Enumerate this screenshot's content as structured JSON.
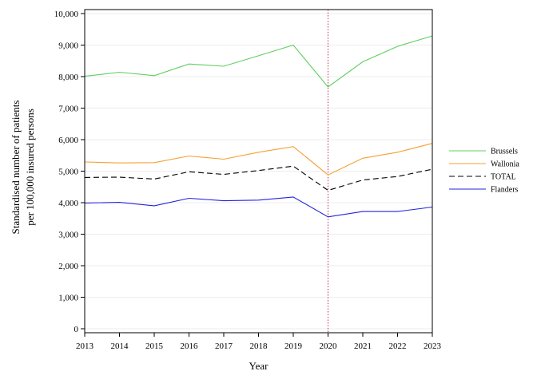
{
  "chart_data": {
    "type": "line",
    "xlabel": "Year",
    "ylabel_lines": [
      "Standardised number of patients",
      "per 100,000 insured persons"
    ],
    "x": [
      2013,
      2014,
      2015,
      2016,
      2017,
      2018,
      2019,
      2020,
      2021,
      2022,
      2023
    ],
    "x_tick_labels": [
      "2013",
      "2014",
      "2015",
      "2016",
      "2017",
      "2018",
      "2019",
      "2020",
      "2021",
      "2022",
      "2023"
    ],
    "xlim": [
      2013,
      2023
    ],
    "ylim": [
      0,
      10000
    ],
    "y_ticks": [
      0,
      1000,
      2000,
      3000,
      4000,
      5000,
      6000,
      7000,
      8000,
      9000,
      10000
    ],
    "y_tick_labels": [
      "0",
      "1,000",
      "2,000",
      "3,000",
      "4,000",
      "5,000",
      "6,000",
      "7,000",
      "8,000",
      "9,000",
      "10,000"
    ],
    "grid": "horizontal",
    "legend_position": "right",
    "reference_line_x": 2020,
    "series": [
      {
        "name": "Brussels",
        "color": "#5fcf5f",
        "style": "solid",
        "values": [
          8010,
          8140,
          8030,
          8400,
          8330,
          8660,
          9000,
          7670,
          8470,
          8960,
          9290
        ]
      },
      {
        "name": "Wallonia",
        "color": "#f5a033",
        "style": "solid",
        "values": [
          5290,
          5260,
          5270,
          5480,
          5380,
          5600,
          5780,
          4880,
          5410,
          5600,
          5880
        ]
      },
      {
        "name": "TOTAL",
        "color": "#000000",
        "style": "dashed",
        "values": [
          4800,
          4810,
          4750,
          4980,
          4900,
          5020,
          5160,
          4390,
          4720,
          4830,
          5060
        ]
      },
      {
        "name": "Flanders",
        "color": "#2222dd",
        "style": "solid",
        "values": [
          3990,
          4010,
          3900,
          4140,
          4060,
          4080,
          4180,
          3550,
          3720,
          3720,
          3860
        ]
      }
    ]
  }
}
